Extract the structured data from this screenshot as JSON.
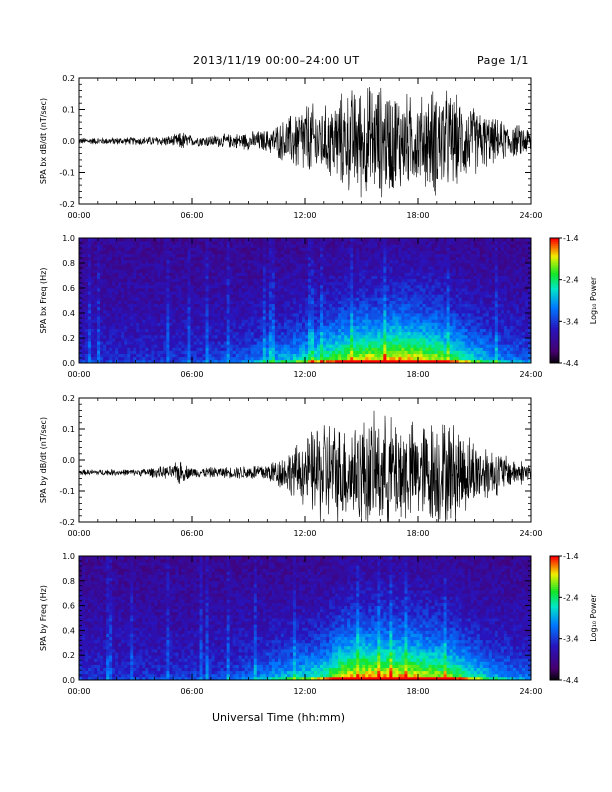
{
  "header": {
    "date_range": "2013/11/19  00:00–24:00 UT",
    "page": "Page 1/1"
  },
  "xlabel": "Universal Time (hh:mm)",
  "colorbar": {
    "label": "Log₁₀ Power",
    "ticks": [
      "-1.4",
      "-2.4",
      "-3.4",
      "-4.4"
    ]
  },
  "chart_data": [
    {
      "type": "line",
      "ylabel": "SPA bx dB/dt (nT/sec)",
      "xlim": [
        0,
        24
      ],
      "ylim": [
        -0.2,
        0.2
      ],
      "x_ticks": [
        "00:00",
        "06:00",
        "12:00",
        "18:00",
        "24:00"
      ],
      "y_ticks": [
        "0.2",
        "0.1",
        "0.0",
        "-0.1",
        "-0.2"
      ],
      "y_offset": 0.0,
      "envelope": {
        "x": [
          0,
          3,
          5,
          5.5,
          6,
          8,
          10,
          11,
          12,
          13,
          14,
          15,
          16,
          17,
          18,
          19,
          20,
          21,
          22,
          23,
          24
        ],
        "amplitude": [
          0.012,
          0.014,
          0.02,
          0.035,
          0.018,
          0.025,
          0.04,
          0.08,
          0.14,
          0.12,
          0.17,
          0.2,
          0.2,
          0.18,
          0.15,
          0.2,
          0.16,
          0.12,
          0.08,
          0.06,
          0.05
        ]
      }
    },
    {
      "type": "heatmap",
      "ylabel": "SPA bx Freq (Hz)",
      "xlim": [
        0,
        24
      ],
      "ylim": [
        0,
        1.0
      ],
      "x_ticks": [
        "00:00",
        "06:00",
        "12:00",
        "18:00",
        "24:00"
      ],
      "y_ticks": [
        "1.0",
        "0.8",
        "0.6",
        "0.4",
        "0.2",
        "0.0"
      ],
      "color_range": [
        -4.4,
        -1.4
      ],
      "activity": {
        "x": [
          0,
          5,
          6,
          8,
          10,
          12,
          14,
          15,
          16,
          17,
          18,
          19,
          20,
          21,
          22,
          23,
          24
        ],
        "level": [
          0.08,
          0.1,
          0.12,
          0.15,
          0.3,
          0.45,
          0.7,
          0.8,
          0.8,
          0.85,
          0.8,
          0.75,
          0.6,
          0.45,
          0.35,
          0.25,
          0.2
        ]
      }
    },
    {
      "type": "line",
      "ylabel": "SPA by dB/dt (nT/sec)",
      "xlim": [
        0,
        24
      ],
      "ylim": [
        -0.2,
        0.2
      ],
      "x_ticks": [
        "00:00",
        "06:00",
        "12:00",
        "18:00",
        "24:00"
      ],
      "y_ticks": [
        "0.2",
        "0.1",
        "0.0",
        "-0.1",
        "-0.2"
      ],
      "y_offset": -0.04,
      "envelope": {
        "x": [
          0,
          3,
          5,
          5.3,
          5.6,
          6,
          8,
          10,
          11,
          12,
          13,
          14,
          15,
          16,
          17,
          18,
          19,
          20,
          21,
          22,
          23,
          24
        ],
        "amplitude": [
          0.01,
          0.012,
          0.025,
          0.05,
          0.03,
          0.018,
          0.02,
          0.035,
          0.07,
          0.12,
          0.2,
          0.17,
          0.2,
          0.2,
          0.2,
          0.17,
          0.2,
          0.18,
          0.12,
          0.09,
          0.05,
          0.04
        ]
      }
    },
    {
      "type": "heatmap",
      "ylabel": "SPA by Freq (Hz)",
      "xlim": [
        0,
        24
      ],
      "ylim": [
        0,
        1.0
      ],
      "x_ticks": [
        "00:00",
        "06:00",
        "12:00",
        "18:00",
        "24:00"
      ],
      "y_ticks": [
        "1.0",
        "0.8",
        "0.6",
        "0.4",
        "0.2",
        "0.0"
      ],
      "color_range": [
        -4.4,
        -1.4
      ],
      "activity": {
        "x": [
          0,
          5,
          6,
          8,
          10,
          12,
          13,
          14,
          15,
          16,
          17,
          18,
          19,
          20,
          21,
          22,
          23,
          24
        ],
        "level": [
          0.08,
          0.1,
          0.12,
          0.15,
          0.3,
          0.45,
          0.55,
          0.8,
          0.85,
          0.85,
          0.85,
          0.8,
          0.75,
          0.65,
          0.5,
          0.35,
          0.25,
          0.2
        ]
      }
    }
  ]
}
